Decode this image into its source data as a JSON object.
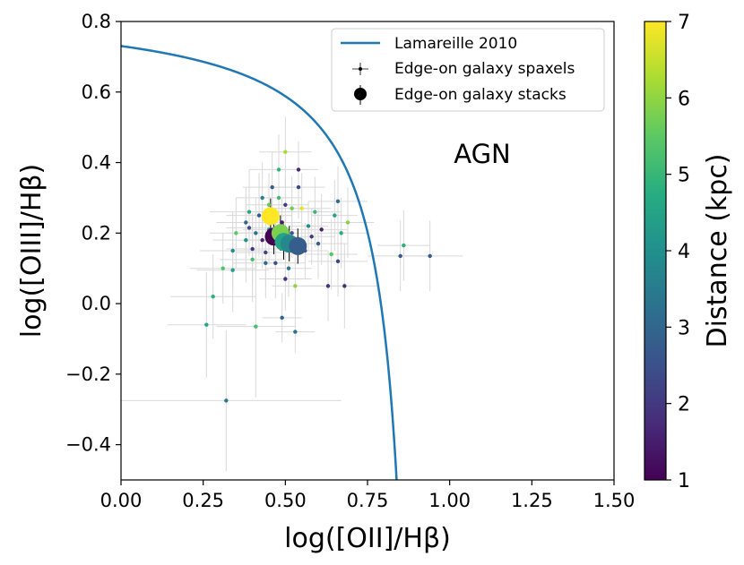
{
  "chart_data": {
    "type": "scatter",
    "xlabel": "log([OII]/Hβ)",
    "ylabel": "log([OIII]/Hβ)",
    "xlim": [
      0.0,
      1.5
    ],
    "ylim": [
      -0.5,
      0.8
    ],
    "xticks": [
      0.0,
      0.25,
      0.5,
      0.75,
      1.0,
      1.25,
      1.5
    ],
    "yticks": [
      -0.4,
      -0.2,
      0.0,
      0.2,
      0.4,
      0.6,
      0.8
    ],
    "xtick_labels": [
      "0.00",
      "0.25",
      "0.50",
      "0.75",
      "1.00",
      "1.25",
      "1.50"
    ],
    "ytick_labels": [
      "−0.4",
      "−0.2",
      "0.0",
      "0.2",
      "0.4",
      "0.6",
      "0.8"
    ],
    "grid": false,
    "annotation": {
      "text": "AGN",
      "x": 1.1,
      "y": 0.42
    },
    "legend": {
      "placement": "top-right",
      "entries": [
        "Lamareille 2010",
        "Edge-on galaxy spaxels",
        "Edge-on galaxy stacks"
      ]
    },
    "colorbar": {
      "label": "Distance (kpc)",
      "range": [
        1,
        7
      ],
      "ticks": [
        1,
        2,
        3,
        4,
        5,
        6,
        7
      ],
      "tick_labels": [
        "1",
        "2",
        "3",
        "4",
        "5",
        "6",
        "7"
      ],
      "colormap": "viridis"
    },
    "curve": {
      "name": "Lamareille 2010",
      "color": "#1f77b4",
      "formula": "y = 0.11/(x - 0.92) + 0.85",
      "x_range": [
        0.0,
        0.84
      ]
    },
    "series": [
      {
        "name": "Edge-on galaxy spaxels",
        "points": [
          {
            "x": 0.26,
            "y": -0.06,
            "d": 4.5,
            "xerr": 0.12,
            "yerr": 0.15
          },
          {
            "x": 0.28,
            "y": 0.02,
            "d": 4.8,
            "xerr": 0.13,
            "yerr": 0.12
          },
          {
            "x": 0.32,
            "y": -0.275,
            "d": 3.5,
            "xerr": 0.35,
            "yerr": 0.2
          },
          {
            "x": 0.31,
            "y": 0.1,
            "d": 5.3,
            "xerr": 0.1,
            "yerr": 0.1
          },
          {
            "x": 0.34,
            "y": 0.095,
            "d": 4.3,
            "xerr": 0.11,
            "yerr": 0.12
          },
          {
            "x": 0.34,
            "y": 0.15,
            "d": 3.8,
            "xerr": 0.1,
            "yerr": 0.11
          },
          {
            "x": 0.35,
            "y": 0.2,
            "d": 5.5,
            "xerr": 0.08,
            "yerr": 0.1
          },
          {
            "x": 0.38,
            "y": 0.18,
            "d": 4.0,
            "xerr": 0.1,
            "yerr": 0.12
          },
          {
            "x": 0.38,
            "y": 0.23,
            "d": 3.0,
            "xerr": 0.09,
            "yerr": 0.1
          },
          {
            "x": 0.39,
            "y": 0.26,
            "d": 4.6,
            "xerr": 0.12,
            "yerr": 0.12
          },
          {
            "x": 0.39,
            "y": 0.215,
            "d": 2.4,
            "xerr": 0.07,
            "yerr": 0.08
          },
          {
            "x": 0.4,
            "y": 0.155,
            "d": 2.0,
            "xerr": 0.08,
            "yerr": 0.1
          },
          {
            "x": 0.4,
            "y": 0.125,
            "d": 5.2,
            "xerr": 0.1,
            "yerr": 0.12
          },
          {
            "x": 0.41,
            "y": 0.2,
            "d": 3.3,
            "xerr": 0.09,
            "yerr": 0.1
          },
          {
            "x": 0.42,
            "y": 0.25,
            "d": 2.7,
            "xerr": 0.1,
            "yerr": 0.12
          },
          {
            "x": 0.43,
            "y": 0.3,
            "d": 3.6,
            "xerr": 0.08,
            "yerr": 0.1
          },
          {
            "x": 0.43,
            "y": 0.18,
            "d": 1.6,
            "xerr": 0.07,
            "yerr": 0.08
          },
          {
            "x": 0.44,
            "y": 0.145,
            "d": 2.2,
            "xerr": 0.09,
            "yerr": 0.1
          },
          {
            "x": 0.44,
            "y": 0.115,
            "d": 3.1,
            "xerr": 0.1,
            "yerr": 0.1
          },
          {
            "x": 0.45,
            "y": 0.28,
            "d": 5.6,
            "xerr": 0.07,
            "yerr": 0.09
          },
          {
            "x": 0.45,
            "y": 0.21,
            "d": 4.4,
            "xerr": 0.08,
            "yerr": 0.1
          },
          {
            "x": 0.46,
            "y": 0.33,
            "d": 2.8,
            "xerr": 0.09,
            "yerr": 0.1
          },
          {
            "x": 0.46,
            "y": 0.26,
            "d": 6.4,
            "xerr": 0.06,
            "yerr": 0.08
          },
          {
            "x": 0.47,
            "y": 0.18,
            "d": 1.8,
            "xerr": 0.08,
            "yerr": 0.09
          },
          {
            "x": 0.47,
            "y": 0.115,
            "d": 2.5,
            "xerr": 0.09,
            "yerr": 0.1
          },
          {
            "x": 0.48,
            "y": 0.38,
            "d": 4.9,
            "xerr": 0.09,
            "yerr": 0.1
          },
          {
            "x": 0.48,
            "y": 0.3,
            "d": 5.1,
            "xerr": 0.07,
            "yerr": 0.08
          },
          {
            "x": 0.49,
            "y": 0.23,
            "d": 1.4,
            "xerr": 0.06,
            "yerr": 0.07
          },
          {
            "x": 0.49,
            "y": -0.04,
            "d": 2.9,
            "xerr": 0.06,
            "yerr": 0.07
          },
          {
            "x": 0.5,
            "y": 0.43,
            "d": 6.2,
            "xerr": 0.08,
            "yerr": 0.1
          },
          {
            "x": 0.5,
            "y": 0.28,
            "d": 2.1,
            "xerr": 0.07,
            "yerr": 0.08
          },
          {
            "x": 0.5,
            "y": 0.07,
            "d": 1.9,
            "xerr": 0.08,
            "yerr": 0.09
          },
          {
            "x": 0.51,
            "y": 0.1,
            "d": 3.4,
            "xerr": 0.07,
            "yerr": 0.08
          },
          {
            "x": 0.52,
            "y": 0.27,
            "d": 5.7,
            "xerr": 0.07,
            "yerr": 0.09
          },
          {
            "x": 0.52,
            "y": 0.2,
            "d": 2.6,
            "xerr": 0.06,
            "yerr": 0.07
          },
          {
            "x": 0.53,
            "y": 0.05,
            "d": 6.0,
            "xerr": 0.07,
            "yerr": 0.08
          },
          {
            "x": 0.53,
            "y": -0.08,
            "d": 3.2,
            "xerr": 0.06,
            "yerr": 0.06
          },
          {
            "x": 0.54,
            "y": 0.33,
            "d": 2.3,
            "xerr": 0.08,
            "yerr": 0.09
          },
          {
            "x": 0.54,
            "y": 0.38,
            "d": 1.7,
            "xerr": 0.06,
            "yerr": 0.08
          },
          {
            "x": 0.55,
            "y": 0.27,
            "d": 6.8,
            "xerr": 0.09,
            "yerr": 0.1
          },
          {
            "x": 0.56,
            "y": 0.15,
            "d": 2.4,
            "xerr": 0.07,
            "yerr": 0.08
          },
          {
            "x": 0.57,
            "y": 0.22,
            "d": 3.9,
            "xerr": 0.06,
            "yerr": 0.07
          },
          {
            "x": 0.58,
            "y": 0.19,
            "d": 2.0,
            "xerr": 0.07,
            "yerr": 0.08
          },
          {
            "x": 0.59,
            "y": 0.26,
            "d": 5.0,
            "xerr": 0.08,
            "yerr": 0.1
          },
          {
            "x": 0.6,
            "y": 0.17,
            "d": 2.8,
            "xerr": 0.09,
            "yerr": 0.1
          },
          {
            "x": 0.61,
            "y": 0.21,
            "d": 1.5,
            "xerr": 0.08,
            "yerr": 0.1
          },
          {
            "x": 0.63,
            "y": 0.05,
            "d": 1.9,
            "xerr": 0.08,
            "yerr": 0.1
          },
          {
            "x": 0.64,
            "y": 0.14,
            "d": 5.4,
            "xerr": 0.08,
            "yerr": 0.1
          },
          {
            "x": 0.65,
            "y": 0.25,
            "d": 4.5,
            "xerr": 0.07,
            "yerr": 0.1
          },
          {
            "x": 0.66,
            "y": 0.12,
            "d": 2.2,
            "xerr": 0.09,
            "yerr": 0.1
          },
          {
            "x": 0.66,
            "y": 0.29,
            "d": 3.1,
            "xerr": 0.09,
            "yerr": 0.1
          },
          {
            "x": 0.67,
            "y": 0.2,
            "d": 4.7,
            "xerr": 0.08,
            "yerr": 0.1
          },
          {
            "x": 0.68,
            "y": 0.05,
            "d": 1.8,
            "xerr": 0.1,
            "yerr": 0.12
          },
          {
            "x": 0.69,
            "y": 0.23,
            "d": 5.9,
            "xerr": 0.08,
            "yerr": 0.1
          },
          {
            "x": 0.41,
            "y": -0.065,
            "d": 5.2,
            "xerr": 0.12,
            "yerr": 0.2
          },
          {
            "x": 0.86,
            "y": 0.165,
            "d": 4.8,
            "xerr": 0.08,
            "yerr": 0.1
          },
          {
            "x": 0.85,
            "y": 0.135,
            "d": 2.6,
            "xerr": 0.1,
            "yerr": 0.1
          },
          {
            "x": 0.94,
            "y": 0.135,
            "d": 2.7,
            "xerr": 0.1,
            "yerr": 0.1
          }
        ]
      },
      {
        "name": "Edge-on galaxy stacks",
        "points": [
          {
            "x": 0.465,
            "y": 0.19,
            "d": 1.0,
            "xerr": 0.01,
            "yerr": 0.05
          },
          {
            "x": 0.455,
            "y": 0.248,
            "d": 7.0,
            "xerr": 0.01,
            "yerr": 0.05
          },
          {
            "x": 0.485,
            "y": 0.2,
            "d": 5.8,
            "xerr": 0.01,
            "yerr": 0.05
          },
          {
            "x": 0.495,
            "y": 0.175,
            "d": 4.5,
            "xerr": 0.01,
            "yerr": 0.05
          },
          {
            "x": 0.512,
            "y": 0.17,
            "d": 3.8,
            "xerr": 0.01,
            "yerr": 0.05
          },
          {
            "x": 0.538,
            "y": 0.163,
            "d": 2.8,
            "xerr": 0.01,
            "yerr": 0.05
          }
        ]
      }
    ]
  }
}
